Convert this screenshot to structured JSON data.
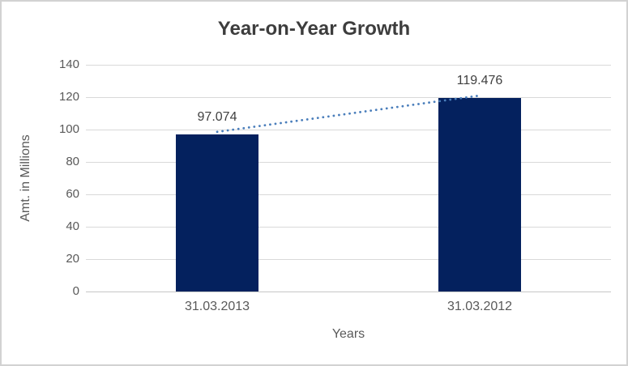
{
  "frame": {
    "background": "#ffffff",
    "border_color": "#d2d2d2"
  },
  "chart_data": {
    "type": "bar",
    "title": "Year-on-Year Growth",
    "xlabel": "Years",
    "ylabel": "Amt. in Millions",
    "categories": [
      "31.03.2013",
      "31.03.2012"
    ],
    "values": [
      97.074,
      119.476
    ],
    "value_labels": [
      "97.074",
      "119.476"
    ],
    "ylim": [
      0,
      140
    ],
    "ytick_step": 20,
    "ytick_labels": [
      "0",
      "20",
      "40",
      "60",
      "80",
      "100",
      "120",
      "140"
    ],
    "grid": true,
    "legend": false,
    "colors": {
      "bar": "#04215e",
      "trendline": "#4a7ebb",
      "gridline": "#d9d9d9",
      "axis_line": "#c6c6c6",
      "tick_text": "#595959",
      "title_text": "#3d3d3d",
      "data_label_text": "#404040"
    },
    "trendline": {
      "style": "dotted",
      "from_category": "31.03.2013",
      "to_category": "31.03.2012"
    }
  }
}
